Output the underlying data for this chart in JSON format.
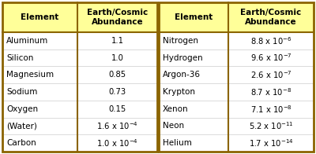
{
  "header_bg": "#FFFF99",
  "border_color": "#8B6400",
  "text_color": "#000000",
  "bg_color": "#FFFFFF",
  "left_table": {
    "rows": [
      [
        "Aluminum",
        "1.1"
      ],
      [
        "Silicon",
        "1.0"
      ],
      [
        "Magnesium",
        "0.85"
      ],
      [
        "Sodium",
        "0.73"
      ],
      [
        "Oxygen",
        "0.15"
      ],
      [
        "(Water)",
        "1.6 x 10$^{-4}$"
      ],
      [
        "Carbon",
        "1.0 x 10$^{-4}$"
      ]
    ]
  },
  "right_table": {
    "rows": [
      [
        "Nitrogen",
        "8.8 x 10$^{-6}$"
      ],
      [
        "Hydrogen",
        "9.6 x 10$^{-7}$"
      ],
      [
        "Argon-36",
        "2.6 x 10$^{-7}$"
      ],
      [
        "Krypton",
        "8.7 x 10$^{-8}$"
      ],
      [
        "Xenon",
        "7.1 x 10$^{-8}$"
      ],
      [
        "Neon",
        "5.2 x 10$^{-11}$"
      ],
      [
        "Helium",
        "1.7 x 10$^{-14}$"
      ]
    ]
  },
  "header_line1": "Earth/Cosmic",
  "header_line2": "Abundance",
  "header_col1": "Element",
  "figsize": [
    4.0,
    1.96
  ],
  "dpi": 100,
  "font_size_header": 7.5,
  "font_size_body": 7.5
}
